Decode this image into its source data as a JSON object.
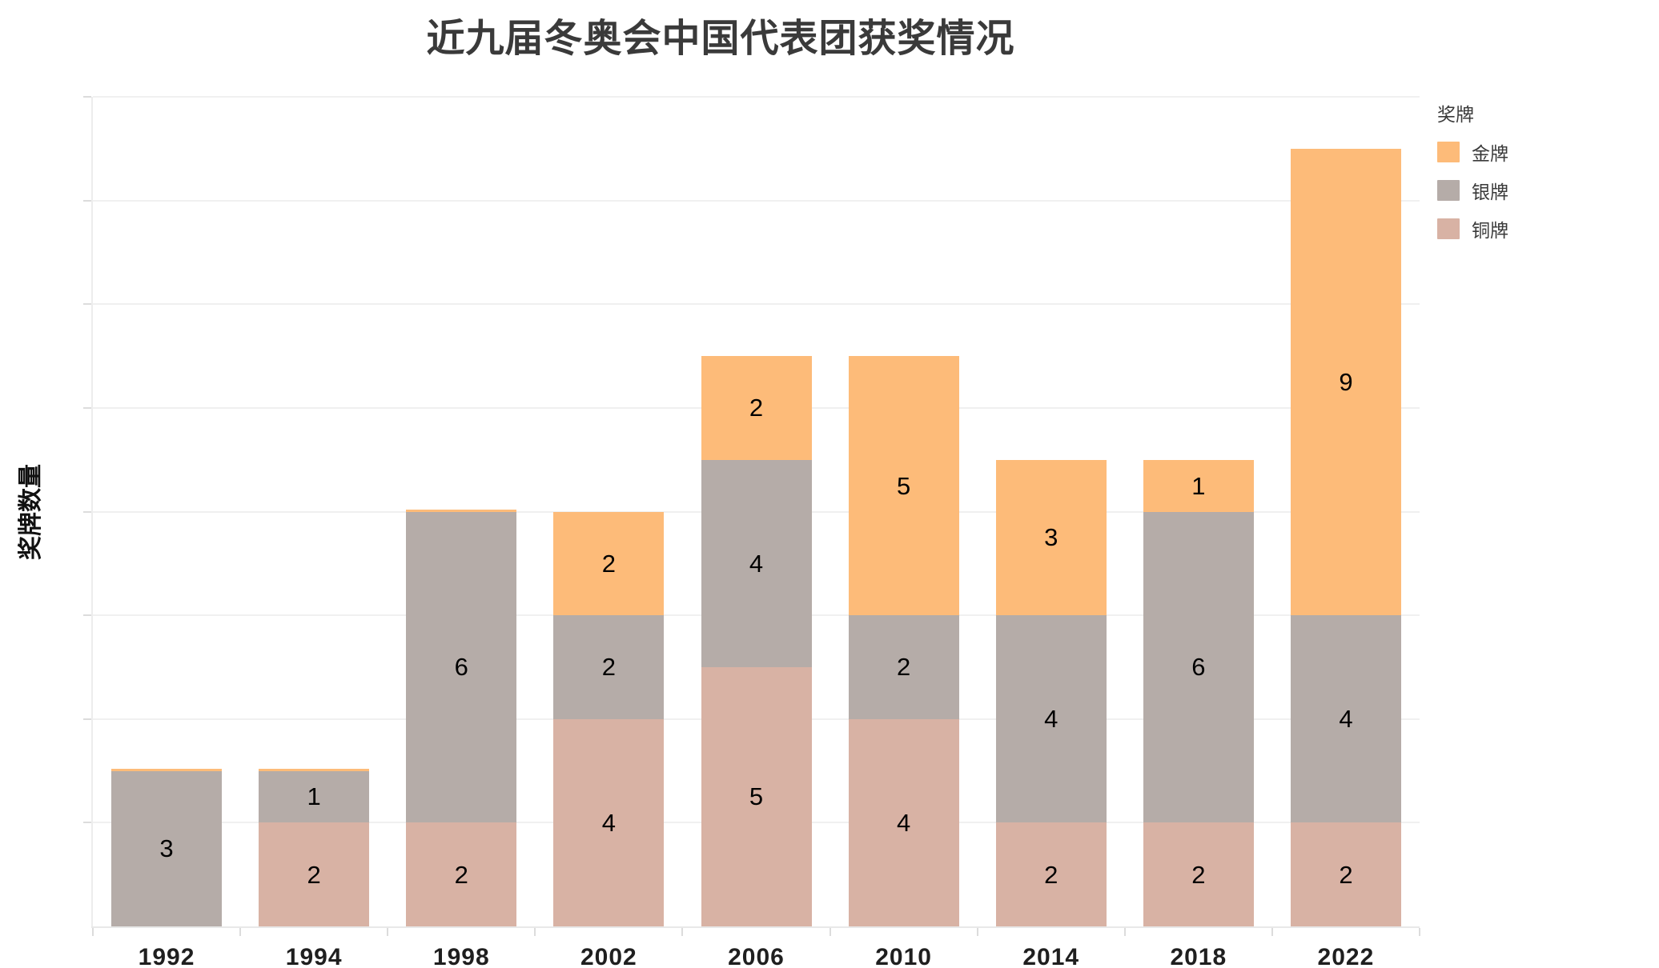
{
  "chart_data": {
    "type": "bar",
    "stacked": true,
    "title": "近九届冬奥会中国代表团获奖情况",
    "ylabel": "奖牌数量",
    "xlabel": "",
    "legend_title": "奖牌",
    "legend_position": "top-right",
    "grid": true,
    "value_labels": true,
    "ylim": [
      0,
      16
    ],
    "grid_step": 2,
    "categories": [
      "1992",
      "1994",
      "1998",
      "2002",
      "2006",
      "2010",
      "2014",
      "2018",
      "2022"
    ],
    "series": [
      {
        "name": "金牌",
        "key": "gold",
        "color": "#FDBB79",
        "values": [
          0,
          0,
          0,
          2,
          2,
          5,
          3,
          1,
          9
        ]
      },
      {
        "name": "银牌",
        "key": "silver",
        "color": "#B5ACA8",
        "values": [
          3,
          1,
          6,
          2,
          4,
          2,
          4,
          6,
          4
        ]
      },
      {
        "name": "铜牌",
        "key": "bronze",
        "color": "#D8B2A4",
        "values": [
          0,
          2,
          2,
          4,
          5,
          4,
          2,
          2,
          2
        ]
      }
    ]
  },
  "colors": {
    "background": "#ffffff",
    "grid": "#f0f0f0",
    "axis": "#e8e8e8",
    "tick": "#dcdcdc",
    "title_text": "#3a3a3a",
    "value_label_text": "#000000",
    "axis_label_text": "#1f1f1f",
    "legend_text": "#3a3a3a"
  }
}
